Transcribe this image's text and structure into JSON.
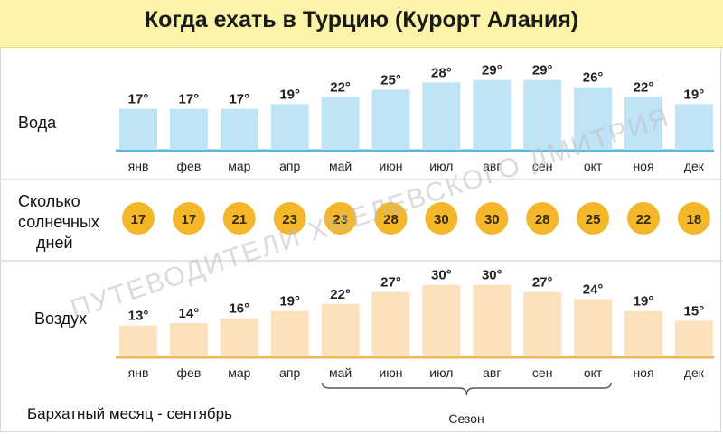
{
  "title": "Когда ехать в Турцию (Курорт Алания)",
  "rows": {
    "water_label": "Вода",
    "sun_label_lines": [
      "Сколько",
      "солнечных",
      "дней"
    ],
    "air_label": "Воздух"
  },
  "degree_suffix": "°",
  "chart_data": [
    {
      "type": "bar",
      "name": "water",
      "categories": [
        "янв",
        "фев",
        "мар",
        "апр",
        "май",
        "июн",
        "июл",
        "авг",
        "сен",
        "окт",
        "ноя",
        "дек"
      ],
      "values": [
        17,
        17,
        17,
        19,
        22,
        25,
        28,
        29,
        29,
        26,
        22,
        19
      ],
      "ylim": [
        0,
        30
      ],
      "color": "#bfe4f6",
      "axis_color": "#5bb7e0"
    },
    {
      "type": "table",
      "name": "sunny_days",
      "categories": [
        "янв",
        "фев",
        "мар",
        "апр",
        "май",
        "июн",
        "июл",
        "авг",
        "сен",
        "окт",
        "ноя",
        "дек"
      ],
      "values": [
        17,
        17,
        21,
        23,
        23,
        28,
        30,
        30,
        28,
        25,
        22,
        18
      ],
      "color": "#f4b72a"
    },
    {
      "type": "bar",
      "name": "air",
      "categories": [
        "янв",
        "фев",
        "мар",
        "апр",
        "май",
        "июн",
        "июл",
        "авг",
        "сен",
        "окт",
        "ноя",
        "дек"
      ],
      "values": [
        13,
        14,
        16,
        19,
        22,
        27,
        30,
        30,
        27,
        24,
        19,
        15
      ],
      "ylim": [
        0,
        31
      ],
      "color": "#fbe2bd",
      "axis_color": "#f2b45c"
    }
  ],
  "season": {
    "label": "Сезон",
    "from": "май",
    "to": "окт"
  },
  "note": "Бархатный месяц - сентябрь",
  "watermark": "ПУТЕВОДИТЕЛИ ХМЕЛЕВСКОГО ДМИТРИЯ"
}
